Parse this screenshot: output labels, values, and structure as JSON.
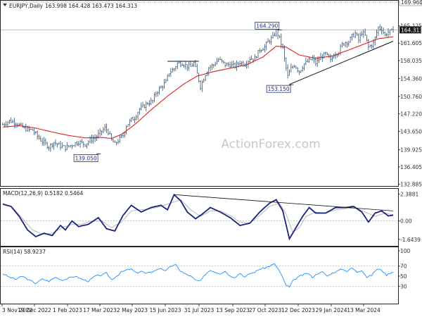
{
  "chart_data": {
    "type": "line",
    "symbol": "EURJPY",
    "timeframe": "Daily",
    "ohlc_header": "163.998 164.428 163.473 164.313",
    "watermark": "ActionForex.com",
    "x_labels": [
      "3 Nov 2022",
      "19 Dec 2022",
      "1 Feb 2023",
      "17 Mar 2023",
      "2 May 2023",
      "15 Jun 2023",
      "31 Jul 2023",
      "13 Sep 2023",
      "27 Oct 2023",
      "12 Dec 2023",
      "29 Jan 2024",
      "13 Mar 2024"
    ],
    "price_panel": {
      "ylim": [
        132.8,
        169.96
      ],
      "tick_values": [
        132.885,
        136.405,
        139.925,
        143.65,
        147.22,
        150.76,
        154.36,
        158.035,
        161.605,
        165.125
      ],
      "tick_labels": [
        "132.885",
        "136.405",
        "139.925",
        "143.650",
        "147.220",
        "150.760",
        "154.360",
        "158.035",
        "161.605",
        "165.125"
      ],
      "reference_level": 169.96,
      "reference_label": "169.960",
      "last_price": 164.313,
      "last_price_label": "164.313",
      "close_series": [
        [
          0,
          145.0
        ],
        [
          4,
          145.8
        ],
        [
          8,
          145.4
        ],
        [
          13,
          144.2
        ],
        [
          18,
          143.9
        ],
        [
          22,
          142.2
        ],
        [
          25,
          141.3
        ],
        [
          28,
          140.5
        ],
        [
          31,
          141.4
        ],
        [
          34,
          140.8
        ],
        [
          38,
          140.3
        ],
        [
          42,
          140.9
        ],
        [
          46,
          141.5
        ],
        [
          50,
          141.0
        ],
        [
          53,
          141.9
        ],
        [
          56,
          142.3
        ],
        [
          59,
          143.3
        ],
        [
          62,
          144.3
        ],
        [
          64,
          143.6
        ],
        [
          66,
          141.8
        ],
        [
          68,
          141.0
        ],
        [
          70,
          141.8
        ],
        [
          73,
          142.8
        ],
        [
          75,
          144.8
        ],
        [
          78,
          146.0
        ],
        [
          80,
          146.4
        ],
        [
          83,
          148.2
        ],
        [
          85,
          148.6
        ],
        [
          88,
          149.4
        ],
        [
          91,
          149.8
        ],
        [
          93,
          151.5
        ],
        [
          96,
          152.6
        ],
        [
          99,
          153.7
        ],
        [
          101,
          155.6
        ],
        [
          104,
          156.4
        ],
        [
          106,
          157.5
        ],
        [
          109,
          157.5
        ],
        [
          112,
          156.9
        ],
        [
          114,
          156.8
        ],
        [
          116,
          157.6
        ],
        [
          118,
          155.3
        ],
        [
          120,
          152.8
        ],
        [
          123,
          155.3
        ],
        [
          125,
          156.6
        ],
        [
          128,
          157.2
        ],
        [
          131,
          158.3
        ],
        [
          133,
          157.8
        ],
        [
          135,
          157.2
        ],
        [
          138,
          157.2
        ],
        [
          141,
          156.9
        ],
        [
          144,
          157.7
        ],
        [
          147,
          157.3
        ],
        [
          150,
          158.5
        ],
        [
          153,
          158.5
        ],
        [
          156,
          160.3
        ],
        [
          159,
          160.8
        ],
        [
          161,
          161.9
        ],
        [
          164,
          162.8
        ],
        [
          166,
          164.2
        ],
        [
          168,
          162.5
        ],
        [
          170,
          160.5
        ],
        [
          171,
          158.3
        ],
        [
          173,
          154.8
        ],
        [
          175,
          156.4
        ],
        [
          177,
          157.2
        ],
        [
          180,
          155.8
        ],
        [
          183,
          157.4
        ],
        [
          186,
          158.0
        ],
        [
          188,
          158.5
        ],
        [
          190,
          157.5
        ],
        [
          193,
          158.7
        ],
        [
          196,
          159.4
        ],
        [
          199,
          158.0
        ],
        [
          201,
          159.3
        ],
        [
          204,
          159.9
        ],
        [
          206,
          161.3
        ],
        [
          208,
          161.8
        ],
        [
          210,
          161.9
        ],
        [
          212,
          163.0
        ],
        [
          214,
          163.6
        ],
        [
          216,
          162.2
        ],
        [
          218,
          163.8
        ],
        [
          220,
          163.1
        ],
        [
          222,
          160.8
        ],
        [
          225,
          161.6
        ],
        [
          228,
          164.8
        ],
        [
          230,
          164.5
        ],
        [
          232,
          163.2
        ],
        [
          234,
          163.9
        ],
        [
          236,
          164.0
        ],
        [
          237,
          164.3
        ]
      ],
      "ma_series": [
        [
          0,
          144.5
        ],
        [
          10,
          144.8
        ],
        [
          20,
          144.3
        ],
        [
          30,
          143.5
        ],
        [
          40,
          142.8
        ],
        [
          50,
          142.3
        ],
        [
          60,
          142.4
        ],
        [
          66,
          142.2
        ],
        [
          72,
          143.0
        ],
        [
          80,
          145.0
        ],
        [
          90,
          148.0
        ],
        [
          100,
          150.8
        ],
        [
          110,
          153.3
        ],
        [
          118,
          154.9
        ],
        [
          128,
          155.8
        ],
        [
          138,
          156.5
        ],
        [
          148,
          157.2
        ],
        [
          158,
          158.8
        ],
        [
          166,
          161.0
        ],
        [
          172,
          160.8
        ],
        [
          180,
          159.2
        ],
        [
          190,
          158.5
        ],
        [
          200,
          159.0
        ],
        [
          210,
          160.2
        ],
        [
          220,
          161.5
        ],
        [
          228,
          162.5
        ],
        [
          237,
          162.9
        ]
      ],
      "annotations": [
        {
          "x": 56,
          "y": 139.05,
          "label": "139.050"
        },
        {
          "x": 166,
          "y": 164.29,
          "label": "164.290"
        },
        {
          "x": 173,
          "y": 153.15,
          "label": "153.150"
        }
      ],
      "trendlines": [
        {
          "from": [
            100,
            157.9
          ],
          "to": [
            119,
            157.9
          ]
        },
        {
          "from": [
            174,
            153.2
          ],
          "to": [
            237,
            162.0
          ]
        }
      ]
    },
    "macd_panel": {
      "title": "MACD(12,26,9) 0.5182 0.5464",
      "ylim": [
        -2.1,
        2.75
      ],
      "tick_values": [
        2.3881,
        0.0,
        -1.6439
      ],
      "tick_labels": [
        "2.3881",
        "0.00",
        "-1.6439"
      ],
      "macd_series": [
        [
          0,
          1.5
        ],
        [
          5,
          1.3
        ],
        [
          10,
          0.4
        ],
        [
          15,
          -0.8
        ],
        [
          20,
          -1.4
        ],
        [
          25,
          -1.1
        ],
        [
          30,
          -1.3
        ],
        [
          35,
          -0.4
        ],
        [
          38,
          -0.8
        ],
        [
          42,
          0.0
        ],
        [
          46,
          -0.5
        ],
        [
          52,
          -0.3
        ],
        [
          58,
          0.3
        ],
        [
          63,
          -0.7
        ],
        [
          68,
          -0.9
        ],
        [
          73,
          0.5
        ],
        [
          78,
          1.4
        ],
        [
          84,
          0.8
        ],
        [
          90,
          1.2
        ],
        [
          96,
          1.4
        ],
        [
          100,
          1.0
        ],
        [
          104,
          2.35
        ],
        [
          108,
          1.8
        ],
        [
          112,
          0.8
        ],
        [
          117,
          0.2
        ],
        [
          121,
          0.6
        ],
        [
          126,
          1.2
        ],
        [
          132,
          0.8
        ],
        [
          138,
          0.3
        ],
        [
          144,
          -0.4
        ],
        [
          150,
          -0.2
        ],
        [
          156,
          0.8
        ],
        [
          162,
          1.6
        ],
        [
          166,
          1.9
        ],
        [
          170,
          0.9
        ],
        [
          174,
          -1.6
        ],
        [
          178,
          -0.6
        ],
        [
          182,
          0.4
        ],
        [
          186,
          1.2
        ],
        [
          190,
          0.7
        ],
        [
          196,
          0.7
        ],
        [
          202,
          1.2
        ],
        [
          208,
          1.2
        ],
        [
          213,
          1.3
        ],
        [
          218,
          0.8
        ],
        [
          222,
          -0.1
        ],
        [
          226,
          0.7
        ],
        [
          230,
          0.9
        ],
        [
          234,
          0.45
        ],
        [
          237,
          0.52
        ]
      ],
      "signal_series": [
        [
          0,
          1.6
        ],
        [
          6,
          1.2
        ],
        [
          12,
          0.2
        ],
        [
          18,
          -0.8
        ],
        [
          24,
          -1.2
        ],
        [
          30,
          -1.1
        ],
        [
          36,
          -0.6
        ],
        [
          42,
          -0.3
        ],
        [
          48,
          -0.3
        ],
        [
          54,
          0.0
        ],
        [
          60,
          0.0
        ],
        [
          66,
          -0.6
        ],
        [
          72,
          -0.1
        ],
        [
          78,
          0.9
        ],
        [
          84,
          1.0
        ],
        [
          90,
          1.1
        ],
        [
          96,
          1.3
        ],
        [
          102,
          1.6
        ],
        [
          108,
          1.9
        ],
        [
          114,
          1.0
        ],
        [
          120,
          0.4
        ],
        [
          126,
          0.9
        ],
        [
          132,
          0.9
        ],
        [
          138,
          0.5
        ],
        [
          144,
          -0.1
        ],
        [
          150,
          -0.2
        ],
        [
          156,
          0.5
        ],
        [
          162,
          1.3
        ],
        [
          168,
          1.6
        ],
        [
          172,
          0.6
        ],
        [
          176,
          -1.0
        ],
        [
          180,
          -0.6
        ],
        [
          184,
          0.4
        ],
        [
          190,
          0.8
        ],
        [
          196,
          0.7
        ],
        [
          202,
          1.0
        ],
        [
          208,
          1.1
        ],
        [
          214,
          1.2
        ],
        [
          220,
          0.8
        ],
        [
          226,
          0.4
        ],
        [
          232,
          0.7
        ],
        [
          237,
          0.55
        ]
      ],
      "trendline": {
        "from": [
          104,
          2.35
        ],
        "to": [
          237,
          0.9
        ]
      }
    },
    "rsi_panel": {
      "title": "RSI(14) 58.9237",
      "ylim": [
        0,
        100
      ],
      "tick_values": [
        100,
        70,
        50,
        30
      ],
      "tick_labels": [
        "100",
        "70",
        "50",
        "30"
      ],
      "rsi_series": [
        [
          0,
          55
        ],
        [
          4,
          48
        ],
        [
          8,
          44
        ],
        [
          12,
          50
        ],
        [
          16,
          42
        ],
        [
          20,
          36
        ],
        [
          24,
          44
        ],
        [
          28,
          40
        ],
        [
          32,
          48
        ],
        [
          36,
          42
        ],
        [
          40,
          46
        ],
        [
          44,
          50
        ],
        [
          48,
          44
        ],
        [
          52,
          40
        ],
        [
          56,
          50
        ],
        [
          60,
          52
        ],
        [
          63,
          56
        ],
        [
          66,
          43
        ],
        [
          69,
          50
        ],
        [
          72,
          58
        ],
        [
          75,
          62
        ],
        [
          78,
          64
        ],
        [
          81,
          56
        ],
        [
          84,
          60
        ],
        [
          87,
          55
        ],
        [
          90,
          58
        ],
        [
          93,
          62
        ],
        [
          96,
          66
        ],
        [
          99,
          60
        ],
        [
          102,
          70
        ],
        [
          105,
          72
        ],
        [
          108,
          60
        ],
        [
          111,
          54
        ],
        [
          114,
          50
        ],
        [
          117,
          42
        ],
        [
          120,
          40
        ],
        [
          123,
          54
        ],
        [
          126,
          62
        ],
        [
          129,
          58
        ],
        [
          132,
          55
        ],
        [
          135,
          60
        ],
        [
          138,
          50
        ],
        [
          141,
          48
        ],
        [
          144,
          56
        ],
        [
          147,
          48
        ],
        [
          150,
          55
        ],
        [
          153,
          58
        ],
        [
          156,
          64
        ],
        [
          159,
          66
        ],
        [
          162,
          70
        ],
        [
          165,
          74
        ],
        [
          168,
          60
        ],
        [
          170,
          46
        ],
        [
          172,
          32
        ],
        [
          174,
          28
        ],
        [
          176,
          40
        ],
        [
          179,
          48
        ],
        [
          182,
          52
        ],
        [
          185,
          56
        ],
        [
          188,
          48
        ],
        [
          191,
          55
        ],
        [
          194,
          58
        ],
        [
          197,
          50
        ],
        [
          200,
          56
        ],
        [
          203,
          60
        ],
        [
          206,
          64
        ],
        [
          209,
          60
        ],
        [
          212,
          66
        ],
        [
          215,
          58
        ],
        [
          218,
          62
        ],
        [
          221,
          48
        ],
        [
          224,
          52
        ],
        [
          227,
          64
        ],
        [
          230,
          62
        ],
        [
          233,
          52
        ],
        [
          235,
          56
        ],
        [
          237,
          58.9
        ]
      ]
    }
  }
}
